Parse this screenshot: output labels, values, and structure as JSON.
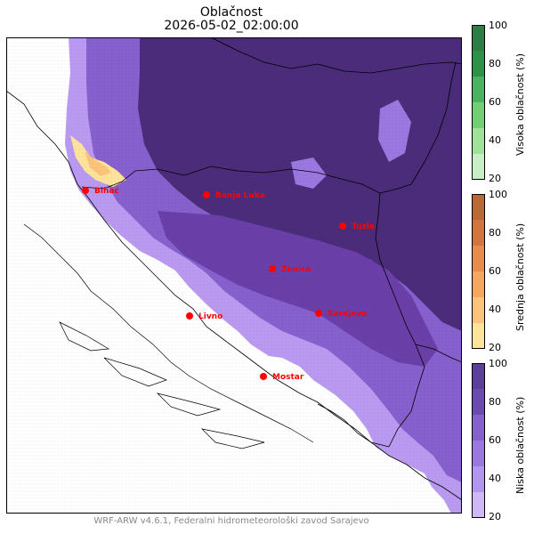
{
  "title": "Oblačnost",
  "timestamp": "2026-05-02_02:00:00",
  "footer": "WRF-ARW v4.6.1, Federalni hidrometeorološki zavod Sarajevo",
  "cities": [
    {
      "name": "Bihać"
    },
    {
      "name": "Banja Luka"
    },
    {
      "name": "Tuzla"
    },
    {
      "name": "Zenica"
    },
    {
      "name": "Sarajevo"
    },
    {
      "name": "Livno"
    },
    {
      "name": "Mostar"
    }
  ],
  "colorbars": [
    {
      "label": "Visoka oblačnost (%)",
      "ticks": [
        "20",
        "40",
        "60",
        "80",
        "100"
      ],
      "colors": [
        "#c7efc3",
        "#a1e29b",
        "#74ce76",
        "#4ab35f",
        "#2f9148",
        "#2e7d44"
      ]
    },
    {
      "label": "Srednja oblačnost (%)",
      "ticks": [
        "20",
        "40",
        "60",
        "80",
        "100"
      ],
      "colors": [
        "#fde39b",
        "#fcc47a",
        "#f5a65f",
        "#e98b4c",
        "#d2743f",
        "#b86938"
      ]
    },
    {
      "label": "Niska oblačnost (%)",
      "ticks": [
        "20",
        "40",
        "60",
        "80",
        "100"
      ],
      "colors": [
        "#cfb8f6",
        "#b196ee",
        "#9a78e0",
        "#8660cc",
        "#6b4bb0",
        "#5b3f98"
      ]
    }
  ],
  "colors": {
    "city_marker": "#ff0000",
    "city_label": "#ff0000",
    "coastline": "#000000",
    "low_dark": "#4a2c7a",
    "low_mid": "#6a3fa8",
    "low_light": "#b99af0",
    "mid_yellow": "#fde39b"
  }
}
